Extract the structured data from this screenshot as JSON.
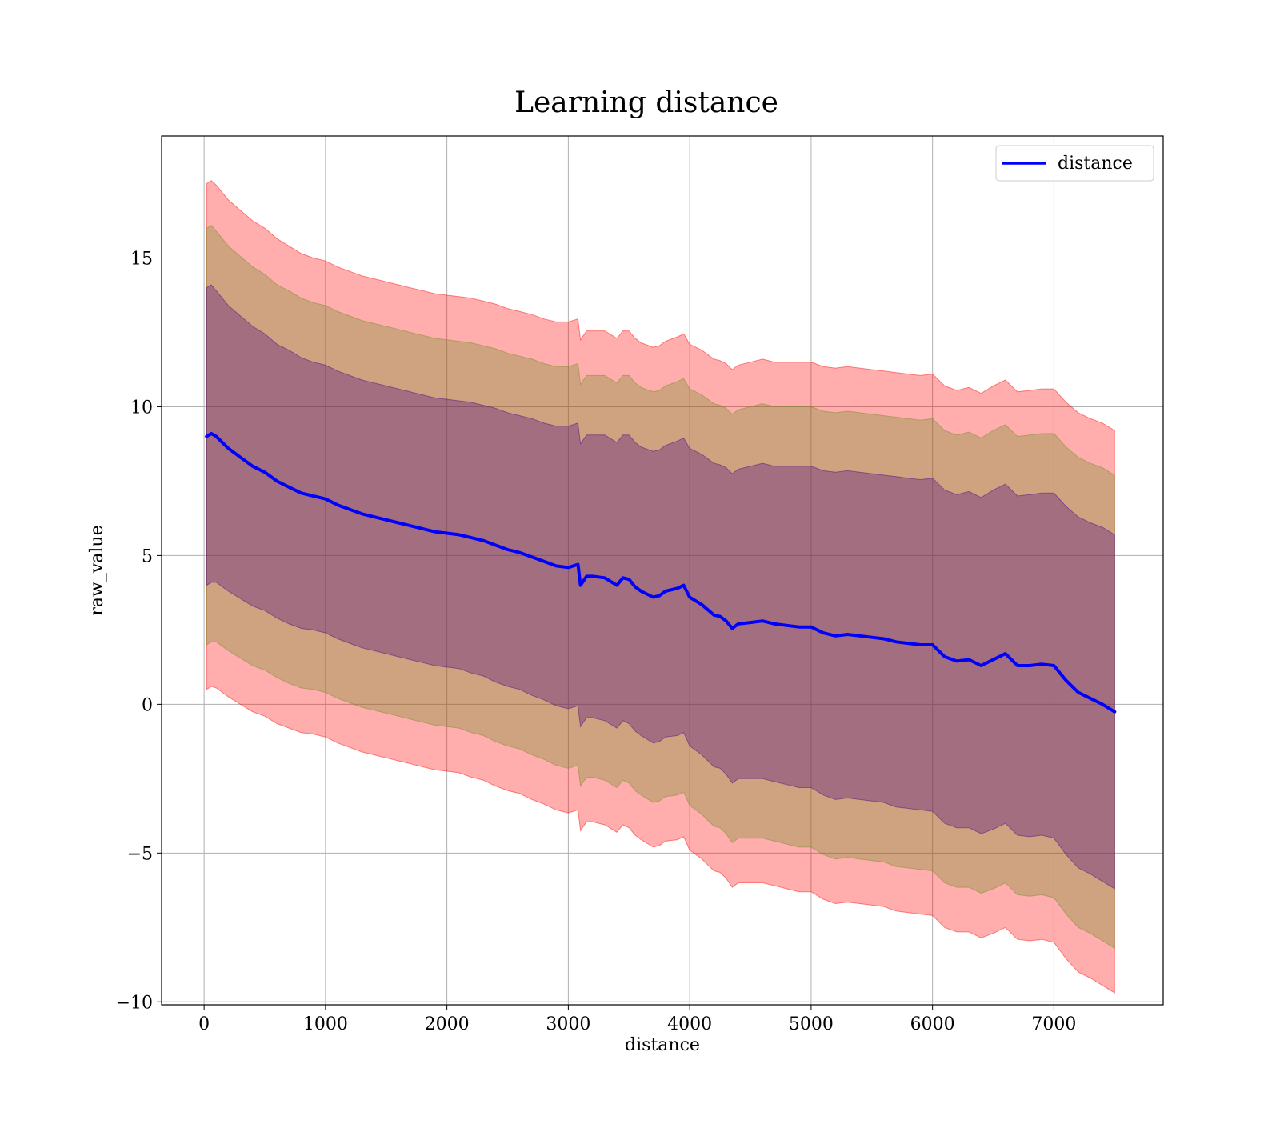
{
  "chart_data": {
    "type": "line",
    "title": "Learning distance",
    "xlabel": "distance",
    "ylabel": "raw_value",
    "xlim": [
      -350,
      7900
    ],
    "ylim": [
      -10.1,
      19.1
    ],
    "x_ticks": [
      0,
      1000,
      2000,
      3000,
      4000,
      5000,
      6000,
      7000
    ],
    "y_ticks": [
      -10,
      -5,
      0,
      5,
      10,
      15
    ],
    "y_tick_labels": [
      "−10",
      "−5",
      "0",
      "5",
      "10",
      "15"
    ],
    "grid": true,
    "legend": {
      "position": "top-right",
      "entries": [
        "distance"
      ]
    },
    "colors": {
      "line": "#0000ff",
      "band_3sigma": "#ff0000",
      "band_2sigma": "#6b8e23",
      "band_1sigma": "#4b0082",
      "band_opacity": 0.32
    },
    "series": [
      {
        "name": "distance",
        "x": [
          20,
          60,
          100,
          150,
          200,
          300,
          400,
          500,
          600,
          700,
          800,
          900,
          1000,
          1100,
          1200,
          1300,
          1400,
          1500,
          1600,
          1700,
          1800,
          1900,
          2000,
          2100,
          2200,
          2300,
          2400,
          2500,
          2600,
          2700,
          2800,
          2900,
          3000,
          3080,
          3100,
          3150,
          3200,
          3300,
          3400,
          3450,
          3500,
          3550,
          3600,
          3700,
          3750,
          3800,
          3900,
          3950,
          4000,
          4100,
          4200,
          4250,
          4300,
          4350,
          4400,
          4500,
          4600,
          4700,
          4800,
          4900,
          5000,
          5100,
          5200,
          5300,
          5400,
          5500,
          5600,
          5700,
          5800,
          5900,
          6000,
          6100,
          6200,
          6300,
          6400,
          6500,
          6600,
          6700,
          6800,
          6900,
          7000,
          7100,
          7200,
          7300,
          7400,
          7500
        ],
        "values": [
          9.0,
          9.1,
          9.0,
          8.8,
          8.6,
          8.3,
          8.0,
          7.8,
          7.5,
          7.3,
          7.1,
          7.0,
          6.9,
          6.7,
          6.55,
          6.4,
          6.3,
          6.2,
          6.1,
          6.0,
          5.9,
          5.8,
          5.75,
          5.7,
          5.6,
          5.5,
          5.35,
          5.2,
          5.1,
          4.95,
          4.8,
          4.65,
          4.6,
          4.7,
          4.0,
          4.3,
          4.3,
          4.25,
          4.0,
          4.25,
          4.2,
          3.95,
          3.8,
          3.6,
          3.65,
          3.8,
          3.9,
          4.0,
          3.6,
          3.35,
          3.0,
          2.95,
          2.8,
          2.55,
          2.7,
          2.75,
          2.8,
          2.7,
          2.65,
          2.6,
          2.6,
          2.4,
          2.3,
          2.35,
          2.3,
          2.25,
          2.2,
          2.1,
          2.05,
          2.0,
          2.0,
          1.6,
          1.45,
          1.5,
          1.3,
          1.5,
          1.7,
          1.3,
          1.3,
          1.35,
          1.3,
          0.8,
          0.4,
          0.2,
          0.0,
          -0.25
        ],
        "band_1sigma_halfwidth": [
          5.0,
          5.0,
          4.9,
          4.85,
          4.8,
          4.75,
          4.7,
          4.65,
          4.6,
          4.6,
          4.55,
          4.5,
          4.5,
          4.5,
          4.5,
          4.5,
          4.5,
          4.5,
          4.5,
          4.5,
          4.5,
          4.5,
          4.5,
          4.5,
          4.55,
          4.55,
          4.6,
          4.6,
          4.6,
          4.65,
          4.65,
          4.7,
          4.75,
          4.75,
          4.75,
          4.75,
          4.75,
          4.8,
          4.8,
          4.8,
          4.85,
          4.85,
          4.85,
          4.9,
          4.9,
          4.9,
          4.95,
          4.95,
          5.0,
          5.05,
          5.1,
          5.1,
          5.15,
          5.2,
          5.2,
          5.25,
          5.3,
          5.3,
          5.35,
          5.4,
          5.4,
          5.45,
          5.5,
          5.5,
          5.5,
          5.5,
          5.5,
          5.55,
          5.55,
          5.55,
          5.6,
          5.6,
          5.6,
          5.65,
          5.65,
          5.7,
          5.7,
          5.7,
          5.75,
          5.75,
          5.8,
          5.85,
          5.9,
          5.9,
          5.95,
          5.95
        ],
        "band_2sigma_halfwidth": [
          7.0,
          7.0,
          6.9,
          6.85,
          6.8,
          6.75,
          6.7,
          6.65,
          6.6,
          6.6,
          6.55,
          6.5,
          6.5,
          6.5,
          6.5,
          6.5,
          6.5,
          6.5,
          6.5,
          6.5,
          6.5,
          6.5,
          6.5,
          6.5,
          6.55,
          6.55,
          6.6,
          6.6,
          6.6,
          6.65,
          6.65,
          6.7,
          6.75,
          6.75,
          6.75,
          6.75,
          6.75,
          6.8,
          6.8,
          6.8,
          6.85,
          6.85,
          6.85,
          6.9,
          6.9,
          6.9,
          6.95,
          6.95,
          7.0,
          7.05,
          7.1,
          7.1,
          7.15,
          7.2,
          7.2,
          7.25,
          7.3,
          7.3,
          7.35,
          7.4,
          7.4,
          7.45,
          7.5,
          7.5,
          7.5,
          7.5,
          7.5,
          7.55,
          7.55,
          7.55,
          7.6,
          7.6,
          7.6,
          7.65,
          7.65,
          7.7,
          7.7,
          7.7,
          7.75,
          7.75,
          7.8,
          7.85,
          7.9,
          7.9,
          7.95,
          7.95
        ],
        "band_3sigma_halfwidth": [
          8.5,
          8.5,
          8.45,
          8.4,
          8.35,
          8.3,
          8.25,
          8.2,
          8.15,
          8.1,
          8.05,
          8.0,
          8.0,
          8.0,
          8.0,
          8.0,
          8.0,
          8.0,
          8.0,
          8.0,
          8.0,
          8.0,
          8.0,
          8.0,
          8.05,
          8.05,
          8.1,
          8.1,
          8.1,
          8.15,
          8.15,
          8.2,
          8.25,
          8.25,
          8.25,
          8.25,
          8.25,
          8.3,
          8.3,
          8.3,
          8.35,
          8.35,
          8.35,
          8.4,
          8.4,
          8.4,
          8.45,
          8.45,
          8.5,
          8.55,
          8.6,
          8.6,
          8.65,
          8.7,
          8.7,
          8.75,
          8.8,
          8.8,
          8.85,
          8.9,
          8.9,
          8.95,
          9.0,
          9.0,
          9.0,
          9.0,
          9.0,
          9.05,
          9.05,
          9.05,
          9.1,
          9.1,
          9.1,
          9.15,
          9.15,
          9.2,
          9.2,
          9.2,
          9.25,
          9.25,
          9.3,
          9.35,
          9.4,
          9.4,
          9.45,
          9.45
        ]
      }
    ]
  }
}
